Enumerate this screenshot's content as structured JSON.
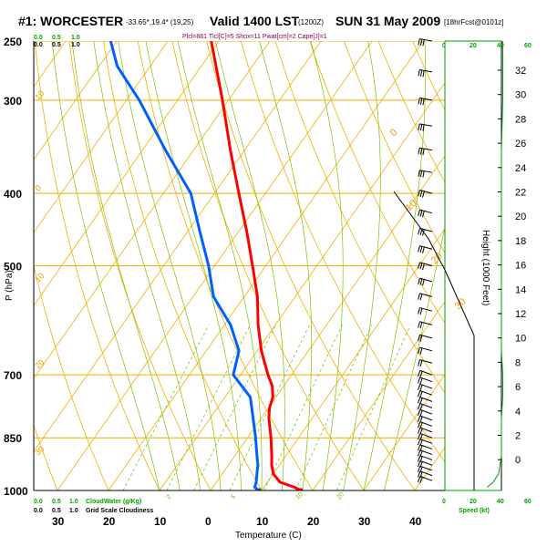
{
  "header": {
    "station": "#1: WORCESTER",
    "coords": "-33.65*,19.4* (19,25)",
    "valid": "Valid 1400 LST",
    "utc": "(1200Z)",
    "date": "SUN 31 May 2009",
    "forecast": "[18hrFcst@0101z]",
    "indices": "Plcl=881 Tlcl[C]=5 Shox=11 Pwat[cm]=2 Cape[J]=1"
  },
  "colors": {
    "temperature": "#ff0000",
    "dewpoint": "#0060ff",
    "isobar_isotherm": "#f0b000",
    "moist_adiabat": "#80c000",
    "mixing_ratio": "#60c000",
    "wind_axis": "#00a000"
  },
  "chart_data": {
    "type": "line",
    "chart_kind": "skew-T log-P sounding",
    "xlabel": "Temperature (C)",
    "ylabel": "P (hPa)",
    "right_label": "Height (1000 Feet)",
    "pressure_ticks": [
      "250",
      "300",
      "400",
      "500",
      "700",
      "850",
      "1000"
    ],
    "pressure_levels": [
      250,
      300,
      400,
      500,
      700,
      850,
      1000
    ],
    "temperature_ticks": [
      "30",
      "20",
      "10",
      "0",
      "10",
      "20",
      "30",
      "40"
    ],
    "temperature_tick_values": [
      -30,
      -20,
      -10,
      0,
      10,
      20,
      30,
      40
    ],
    "height_ticks": [
      "32",
      "30",
      "28",
      "26",
      "24",
      "22",
      "20",
      "18",
      "16",
      "14",
      "12",
      "10",
      "8",
      "6",
      "4",
      "2",
      "0"
    ],
    "series": [
      {
        "key": "temperature",
        "points": [
          {
            "p": 1000,
            "t": 17.6
          },
          {
            "p": 990,
            "t": 16.0
          },
          {
            "p": 975,
            "t": 12.5
          },
          {
            "p": 950,
            "t": 10.0
          },
          {
            "p": 925,
            "t": 8.5
          },
          {
            "p": 900,
            "t": 7.3
          },
          {
            "p": 850,
            "t": 4.6
          },
          {
            "p": 800,
            "t": 1.5
          },
          {
            "p": 775,
            "t": 0.2
          },
          {
            "p": 750,
            "t": -0.6
          },
          {
            "p": 725,
            "t": -2.2
          },
          {
            "p": 700,
            "t": -4.6
          },
          {
            "p": 650,
            "t": -9.2
          },
          {
            "p": 600,
            "t": -13.4
          },
          {
            "p": 550,
            "t": -17.4
          },
          {
            "p": 500,
            "t": -22.6
          },
          {
            "p": 450,
            "t": -28.4
          },
          {
            "p": 400,
            "t": -35.2
          },
          {
            "p": 350,
            "t": -42.8
          },
          {
            "p": 300,
            "t": -51.2
          },
          {
            "p": 250,
            "t": -61.5
          }
        ]
      },
      {
        "key": "dewpoint",
        "points": [
          {
            "p": 1000,
            "t": 9.4
          },
          {
            "p": 990,
            "t": 8.2
          },
          {
            "p": 975,
            "t": 7.8
          },
          {
            "p": 950,
            "t": 6.8
          },
          {
            "p": 925,
            "t": 5.8
          },
          {
            "p": 900,
            "t": 4.4
          },
          {
            "p": 850,
            "t": 1.6
          },
          {
            "p": 800,
            "t": -1.6
          },
          {
            "p": 750,
            "t": -5.0
          },
          {
            "p": 700,
            "t": -11.4
          },
          {
            "p": 650,
            "t": -13.6
          },
          {
            "p": 600,
            "t": -18.8
          },
          {
            "p": 550,
            "t": -26.0
          },
          {
            "p": 500,
            "t": -31.2
          },
          {
            "p": 450,
            "t": -37.6
          },
          {
            "p": 400,
            "t": -44.6
          },
          {
            "p": 350,
            "t": -55.5
          },
          {
            "p": 300,
            "t": -67.5
          },
          {
            "p": 270,
            "t": -76.5
          },
          {
            "p": 250,
            "t": -81.2
          }
        ]
      }
    ],
    "temperature_label_values": [
      "0",
      "10",
      "20",
      "30"
    ],
    "left_temperature_labels": [
      "10",
      "0",
      "10",
      "20",
      "30"
    ],
    "mixing_ratio_labels": [
      "2",
      "5",
      "10",
      "20"
    ],
    "bottom_legend": {
      "cloudwater_ticks": [
        "0.0",
        "0.5",
        "1.0"
      ],
      "cloudwater_label": "CloudWater (g/Kg)",
      "cloudiness_ticks": [
        "0.0",
        "0.5",
        "1.0"
      ],
      "cloudiness_label": "Grid Scale Cloudiness"
    },
    "top_legend": {
      "green_ticks": [
        "0.0",
        "0.5",
        "1.0"
      ],
      "black_ticks": [
        "0.0",
        "0.5",
        "1.0"
      ]
    },
    "wind_axis": {
      "ticks": [
        "0",
        "20",
        "40",
        "60"
      ],
      "label": "Speed (kt)"
    },
    "wind_barbs": [
      {
        "p": 250,
        "dir": 280,
        "spd": 30
      },
      {
        "p": 275,
        "dir": 280,
        "spd": 30
      },
      {
        "p": 300,
        "dir": 280,
        "spd": 30
      },
      {
        "p": 325,
        "dir": 280,
        "spd": 30
      },
      {
        "p": 350,
        "dir": 280,
        "spd": 30
      },
      {
        "p": 375,
        "dir": 280,
        "spd": 30
      },
      {
        "p": 400,
        "dir": 285,
        "spd": 25
      },
      {
        "p": 425,
        "dir": 285,
        "spd": 25
      },
      {
        "p": 450,
        "dir": 285,
        "spd": 25
      },
      {
        "p": 475,
        "dir": 285,
        "spd": 25
      },
      {
        "p": 500,
        "dir": 285,
        "spd": 25
      },
      {
        "p": 525,
        "dir": 285,
        "spd": 25
      },
      {
        "p": 550,
        "dir": 285,
        "spd": 20
      },
      {
        "p": 575,
        "dir": 285,
        "spd": 20
      },
      {
        "p": 600,
        "dir": 285,
        "spd": 20
      },
      {
        "p": 625,
        "dir": 285,
        "spd": 20
      },
      {
        "p": 650,
        "dir": 285,
        "spd": 20
      },
      {
        "p": 675,
        "dir": 285,
        "spd": 20
      },
      {
        "p": 700,
        "dir": 290,
        "spd": 20
      },
      {
        "p": 715,
        "dir": 290,
        "spd": 20
      },
      {
        "p": 730,
        "dir": 290,
        "spd": 20
      },
      {
        "p": 745,
        "dir": 290,
        "spd": 20
      },
      {
        "p": 760,
        "dir": 290,
        "spd": 20
      },
      {
        "p": 775,
        "dir": 290,
        "spd": 20
      },
      {
        "p": 790,
        "dir": 290,
        "spd": 20
      },
      {
        "p": 805,
        "dir": 290,
        "spd": 20
      },
      {
        "p": 820,
        "dir": 290,
        "spd": 20
      },
      {
        "p": 835,
        "dir": 290,
        "spd": 20
      },
      {
        "p": 850,
        "dir": 290,
        "spd": 20
      },
      {
        "p": 865,
        "dir": 290,
        "spd": 20
      },
      {
        "p": 880,
        "dir": 290,
        "spd": 20
      },
      {
        "p": 895,
        "dir": 290,
        "spd": 20
      },
      {
        "p": 910,
        "dir": 290,
        "spd": 20
      },
      {
        "p": 925,
        "dir": 290,
        "spd": 20
      },
      {
        "p": 940,
        "dir": 290,
        "spd": 20
      },
      {
        "p": 955,
        "dir": 290,
        "spd": 20
      },
      {
        "p": 970,
        "dir": 290,
        "spd": 20
      }
    ],
    "wind_speed_profile": [
      {
        "p": 250,
        "spd": 41
      },
      {
        "p": 300,
        "spd": 41
      },
      {
        "p": 350,
        "spd": 40
      },
      {
        "p": 400,
        "spd": 40
      },
      {
        "p": 450,
        "spd": 40
      },
      {
        "p": 500,
        "spd": 40
      },
      {
        "p": 550,
        "spd": 40
      },
      {
        "p": 600,
        "spd": 40
      },
      {
        "p": 650,
        "spd": 40
      },
      {
        "p": 700,
        "spd": 41
      },
      {
        "p": 750,
        "spd": 41
      },
      {
        "p": 800,
        "spd": 40
      },
      {
        "p": 850,
        "spd": 40
      },
      {
        "p": 900,
        "spd": 40
      },
      {
        "p": 950,
        "spd": 38
      },
      {
        "p": 975,
        "spd": 34
      },
      {
        "p": 990,
        "spd": 30
      }
    ]
  }
}
